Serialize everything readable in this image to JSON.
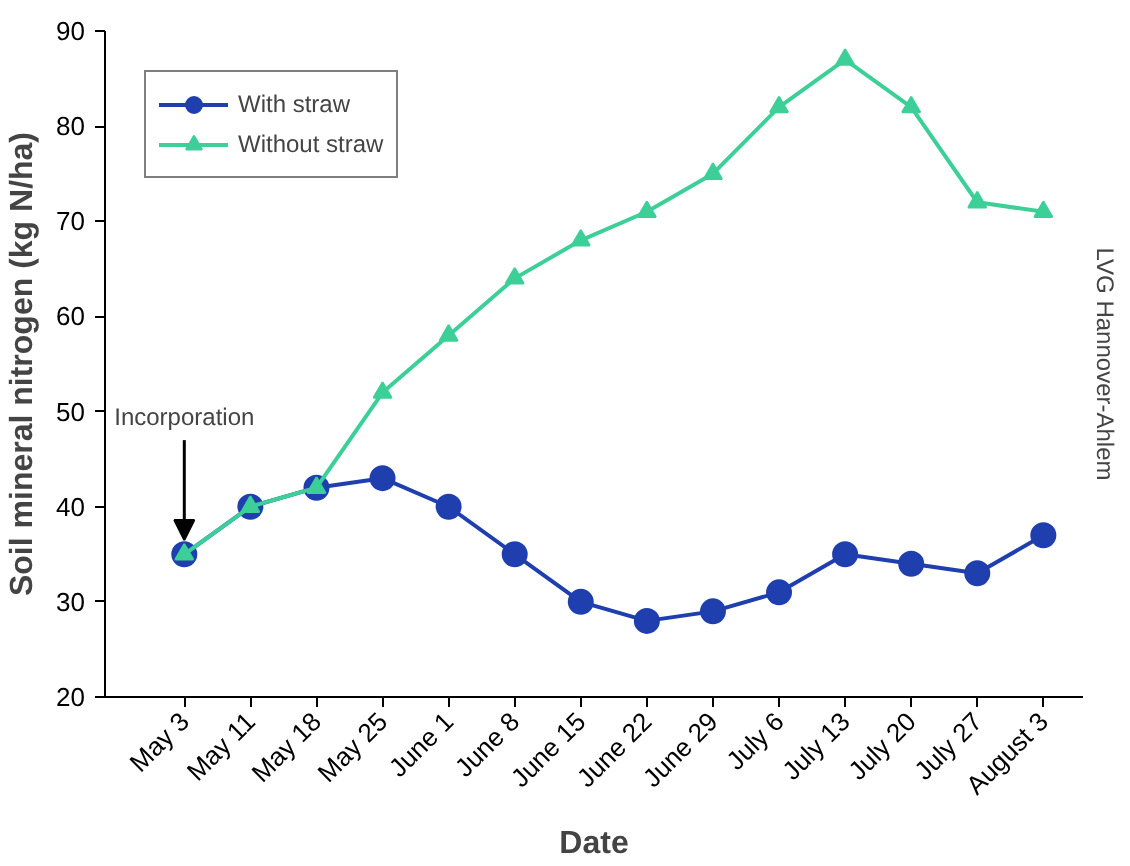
{
  "chart_data": {
    "type": "line",
    "xlabel": "Date",
    "ylabel": "Soil mineral nitrogen (kg N/ha)",
    "categories": [
      "May 3",
      "May 11",
      "May 18",
      "May 25",
      "June 1",
      "June 8",
      "June 15",
      "June 22",
      "June 29",
      "July 6",
      "July 13",
      "July 20",
      "July 27",
      "August 3"
    ],
    "series": [
      {
        "name": "With straw",
        "color": "#1f3fae",
        "marker": "circle",
        "values": [
          35,
          40,
          42,
          43,
          40,
          35,
          30,
          28,
          29,
          31,
          35,
          34,
          33,
          37
        ]
      },
      {
        "name": "Without straw",
        "color": "#3ccf98",
        "marker": "triangle",
        "values": [
          35,
          40,
          42,
          52,
          58,
          64,
          68,
          71,
          75,
          82,
          87,
          82,
          72,
          71
        ]
      }
    ],
    "ylim": [
      20,
      90
    ],
    "yticks": [
      20,
      30,
      40,
      50,
      60,
      70,
      80,
      90
    ],
    "grid": false,
    "legend": "top left",
    "annotations": [
      {
        "text": "Incorporation",
        "x": "May 3",
        "y": 35
      },
      "LVG Hannover-Ahlem"
    ]
  }
}
